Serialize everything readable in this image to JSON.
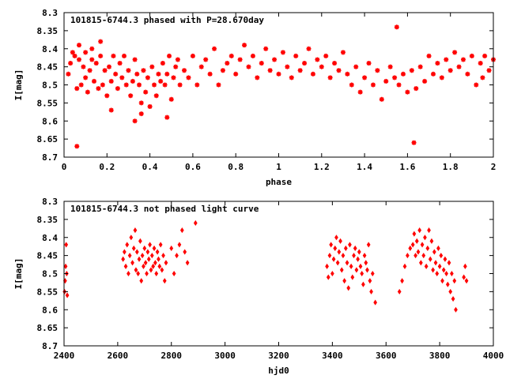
{
  "colors": {
    "points": "#ff0000",
    "axes": "#000000",
    "background": "#ffffff"
  },
  "chart_data": [
    {
      "type": "scatter",
      "title": "101815-6744.3 phased with P=28.670day",
      "xlabel": "phase",
      "ylabel": "I[mag]",
      "xlim": [
        0,
        2
      ],
      "ylim": [
        8.3,
        8.7
      ],
      "y_inverted": true,
      "xticks": [
        "0",
        "0.2",
        "0.4",
        "0.6",
        "0.8",
        "1",
        "1.2",
        "1.4",
        "1.6",
        "1.8",
        "2"
      ],
      "yticks": [
        "8.3",
        "8.35",
        "8.4",
        "8.45",
        "8.5",
        "8.55",
        "8.6",
        "8.65",
        "8.7"
      ],
      "marker": "star",
      "series": [
        {
          "x": [
            0.02,
            0.03,
            0.04,
            0.05,
            0.06,
            0.07,
            0.07,
            0.08,
            0.09,
            0.1,
            0.1,
            0.11,
            0.12,
            0.13,
            0.13,
            0.14,
            0.15,
            0.16,
            0.17,
            0.17,
            0.18,
            0.19,
            0.2,
            0.21,
            0.22,
            0.23,
            0.24,
            0.25,
            0.26,
            0.27,
            0.28,
            0.29,
            0.3,
            0.31,
            0.32,
            0.33,
            0.34,
            0.35,
            0.36,
            0.37,
            0.38,
            0.39,
            0.4,
            0.41,
            0.42,
            0.43,
            0.44,
            0.45,
            0.46,
            0.47,
            0.48,
            0.49,
            0.5,
            0.51,
            0.52,
            0.53,
            0.54,
            0.56,
            0.58,
            0.6,
            0.62,
            0.64,
            0.66,
            0.68,
            0.7,
            0.72,
            0.74,
            0.76,
            0.78,
            0.8,
            0.82,
            0.84,
            0.86,
            0.88,
            0.9,
            0.92,
            0.94,
            0.96,
            0.98,
            1.0,
            1.02,
            1.04,
            1.06,
            1.08,
            1.1,
            1.12,
            1.14,
            1.16,
            1.18,
            1.2,
            1.22,
            1.24,
            1.26,
            1.28,
            1.3,
            1.32,
            1.34,
            1.36,
            1.38,
            1.4,
            1.42,
            1.44,
            1.46,
            1.48,
            1.5,
            1.52,
            1.54,
            1.55,
            1.56,
            1.58,
            1.6,
            1.62,
            1.63,
            1.64,
            1.66,
            1.68,
            1.7,
            1.72,
            1.74,
            1.76,
            1.78,
            1.8,
            1.82,
            1.84,
            1.86,
            1.88,
            1.9,
            1.92,
            1.94,
            1.95,
            1.96,
            1.98,
            2.0,
            0.06,
            0.36,
            0.33,
            0.22,
            0.48
          ],
          "y": [
            8.47,
            8.44,
            8.41,
            8.42,
            8.51,
            8.43,
            8.39,
            8.5,
            8.45,
            8.48,
            8.41,
            8.52,
            8.46,
            8.43,
            8.4,
            8.49,
            8.44,
            8.51,
            8.42,
            8.38,
            8.5,
            8.46,
            8.53,
            8.45,
            8.49,
            8.42,
            8.47,
            8.51,
            8.44,
            8.48,
            8.42,
            8.5,
            8.46,
            8.53,
            8.49,
            8.43,
            8.47,
            8.5,
            8.55,
            8.46,
            8.52,
            8.48,
            8.56,
            8.45,
            8.5,
            8.53,
            8.47,
            8.49,
            8.44,
            8.5,
            8.47,
            8.42,
            8.54,
            8.48,
            8.45,
            8.43,
            8.5,
            8.46,
            8.48,
            8.42,
            8.5,
            8.45,
            8.43,
            8.47,
            8.4,
            8.5,
            8.46,
            8.44,
            8.42,
            8.47,
            8.43,
            8.39,
            8.45,
            8.42,
            8.48,
            8.44,
            8.4,
            8.46,
            8.43,
            8.47,
            8.41,
            8.45,
            8.48,
            8.42,
            8.46,
            8.44,
            8.4,
            8.47,
            8.43,
            8.45,
            8.42,
            8.48,
            8.44,
            8.46,
            8.41,
            8.47,
            8.5,
            8.45,
            8.52,
            8.48,
            8.44,
            8.5,
            8.46,
            8.54,
            8.49,
            8.45,
            8.48,
            8.34,
            8.5,
            8.47,
            8.52,
            8.46,
            8.66,
            8.51,
            8.45,
            8.49,
            8.42,
            8.47,
            8.44,
            8.48,
            8.43,
            8.46,
            8.41,
            8.45,
            8.43,
            8.47,
            8.42,
            8.5,
            8.44,
            8.48,
            8.42,
            8.46,
            8.43,
            8.67,
            8.58,
            8.6,
            8.57,
            8.59
          ]
        }
      ]
    },
    {
      "type": "scatter",
      "title": "101815-6744.3 not phased light curve",
      "xlabel": "hjd0",
      "ylabel": "I[mag]",
      "xlim": [
        2400,
        4000
      ],
      "ylim": [
        8.3,
        8.7
      ],
      "y_inverted": true,
      "xticks": [
        "2400",
        "2600",
        "2800",
        "3000",
        "3200",
        "3400",
        "3600",
        "3800",
        "4000"
      ],
      "yticks": [
        "8.3",
        "8.35",
        "8.4",
        "8.45",
        "8.5",
        "8.55",
        "8.6",
        "8.65",
        "8.7"
      ],
      "marker": "diamond",
      "series": [
        {
          "x": [
            2402,
            2404,
            2406,
            2408,
            2410,
            2412,
            2620,
            2625,
            2630,
            2635,
            2640,
            2645,
            2650,
            2655,
            2660,
            2665,
            2668,
            2672,
            2676,
            2680,
            2684,
            2688,
            2692,
            2696,
            2700,
            2704,
            2708,
            2712,
            2716,
            2720,
            2724,
            2728,
            2732,
            2736,
            2740,
            2744,
            2748,
            2752,
            2756,
            2760,
            2765,
            2770,
            2775,
            2780,
            2800,
            2810,
            2820,
            2830,
            2840,
            2850,
            2860,
            2890,
            3380,
            3385,
            3390,
            3395,
            3400,
            3405,
            3410,
            3415,
            3420,
            3425,
            3430,
            3435,
            3440,
            3445,
            3450,
            3455,
            3460,
            3465,
            3470,
            3475,
            3480,
            3485,
            3490,
            3495,
            3500,
            3505,
            3510,
            3515,
            3520,
            3525,
            3530,
            3535,
            3540,
            3545,
            3550,
            3560,
            3650,
            3660,
            3670,
            3680,
            3690,
            3700,
            3705,
            3710,
            3715,
            3720,
            3725,
            3730,
            3735,
            3740,
            3745,
            3750,
            3755,
            3760,
            3765,
            3770,
            3775,
            3780,
            3785,
            3790,
            3795,
            3800,
            3805,
            3810,
            3815,
            3820,
            3825,
            3830,
            3835,
            3840,
            3845,
            3850,
            3855,
            3860,
            3890,
            3895,
            3900
          ],
          "y": [
            8.55,
            8.52,
            8.48,
            8.42,
            8.5,
            8.56,
            8.46,
            8.44,
            8.48,
            8.42,
            8.5,
            8.45,
            8.4,
            8.47,
            8.43,
            8.38,
            8.49,
            8.44,
            8.5,
            8.46,
            8.41,
            8.52,
            8.45,
            8.48,
            8.43,
            8.47,
            8.5,
            8.44,
            8.46,
            8.42,
            8.49,
            8.45,
            8.48,
            8.43,
            8.47,
            8.5,
            8.44,
            8.46,
            8.48,
            8.42,
            8.49,
            8.45,
            8.52,
            8.47,
            8.43,
            8.5,
            8.45,
            8.42,
            8.38,
            8.44,
            8.47,
            8.36,
            8.48,
            8.51,
            8.45,
            8.42,
            8.5,
            8.46,
            8.43,
            8.4,
            8.47,
            8.44,
            8.41,
            8.49,
            8.45,
            8.52,
            8.43,
            8.47,
            8.54,
            8.42,
            8.48,
            8.51,
            8.45,
            8.43,
            8.49,
            8.46,
            8.44,
            8.48,
            8.5,
            8.53,
            8.45,
            8.47,
            8.49,
            8.42,
            8.52,
            8.55,
            8.5,
            8.58,
            8.55,
            8.52,
            8.48,
            8.45,
            8.43,
            8.42,
            8.39,
            8.45,
            8.41,
            8.44,
            8.38,
            8.47,
            8.42,
            8.45,
            8.4,
            8.48,
            8.43,
            8.38,
            8.46,
            8.41,
            8.49,
            8.44,
            8.47,
            8.5,
            8.43,
            8.48,
            8.45,
            8.52,
            8.49,
            8.46,
            8.5,
            8.53,
            8.47,
            8.55,
            8.5,
            8.57,
            8.52,
            8.6,
            8.51,
            8.48,
            8.52
          ]
        }
      ]
    }
  ]
}
